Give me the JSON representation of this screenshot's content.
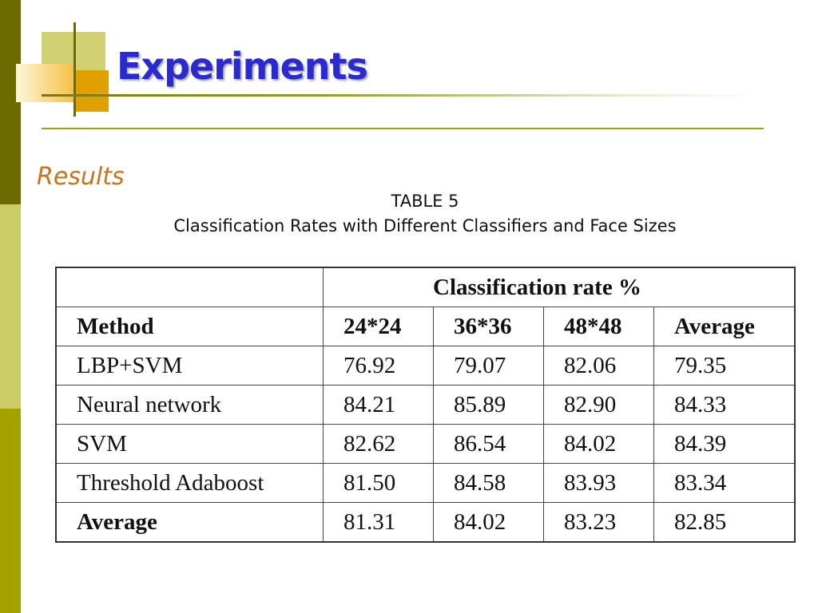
{
  "slide": {
    "title": "Experiments",
    "subtitle": "Results"
  },
  "caption": {
    "line1": "TABLE 5",
    "line2": "Classification Rates with Different Classifiers and Face Sizes"
  },
  "table": {
    "group_header": "Classification rate %",
    "columns": [
      "Method",
      "24*24",
      "36*36",
      "48*48",
      "Average"
    ],
    "rows": [
      [
        "LBP+SVM",
        "76.92",
        "79.07",
        "82.06",
        "79.35"
      ],
      [
        "Neural network",
        "84.21",
        "85.89",
        "82.90",
        "84.33"
      ],
      [
        "SVM",
        "82.62",
        "86.54",
        "84.02",
        "84.39"
      ],
      [
        "Threshold Adaboost",
        "81.50",
        "84.58",
        "83.93",
        "83.34"
      ],
      [
        "Average",
        "81.31",
        "84.02",
        "83.23",
        "82.85"
      ]
    ]
  },
  "colors": {
    "title": "#2a2ad0",
    "subtitle": "#c87418",
    "stripe_dark": "#6b6b00",
    "stripe_light": "#cccc66",
    "stripe_mid": "#a3a300"
  }
}
